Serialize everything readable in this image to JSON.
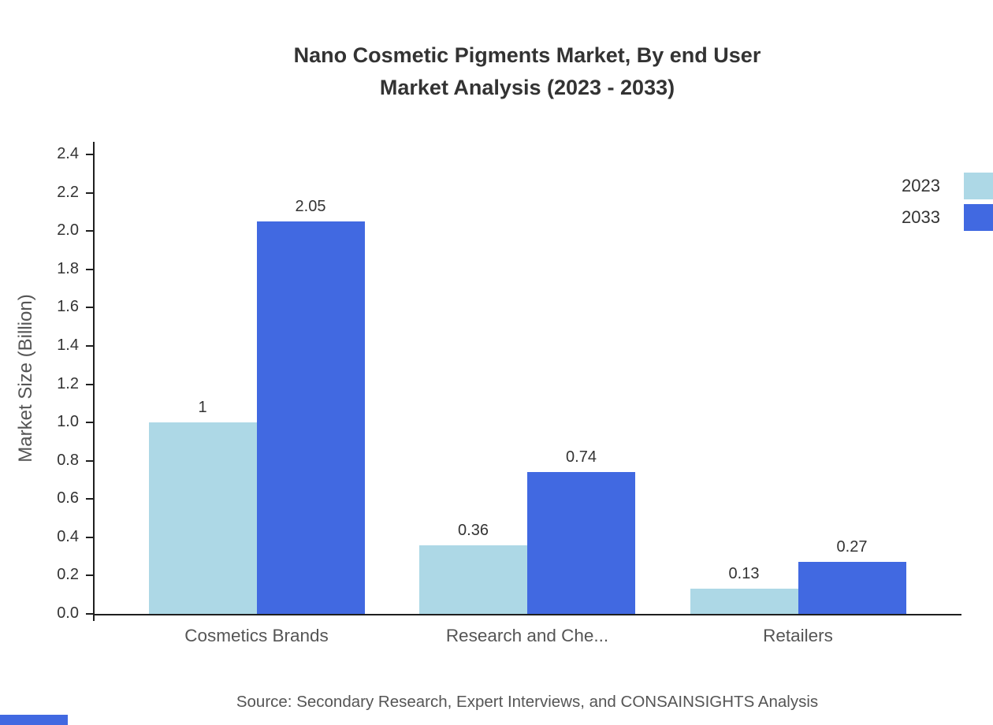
{
  "title": {
    "line1": "Nano Cosmetic Pigments Market, By end User",
    "line2": "Market Analysis (2023 - 2033)"
  },
  "source": "Source: Secondary Research, Expert Interviews, and CONSAINSIGHTS Analysis",
  "accent_color": "#4169E1",
  "chart_data": {
    "type": "bar",
    "title": "Nano Cosmetic Pigments Market, By end User Market Analysis (2023 - 2033)",
    "categories": [
      "Cosmetics Brands",
      "Research and Che...",
      "Retailers"
    ],
    "series": [
      {
        "name": "2023",
        "color": "#ADD8E6",
        "values": [
          1,
          0.36,
          0.13
        ],
        "labels": [
          "1",
          "0.36",
          "0.13"
        ]
      },
      {
        "name": "2033",
        "color": "#4169E1",
        "values": [
          2.05,
          0.74,
          0.27
        ],
        "labels": [
          "2.05",
          "0.74",
          "0.27"
        ]
      }
    ],
    "xlabel": "",
    "ylabel": "Market Size (Billion)",
    "ylim": [
      0,
      2.4
    ],
    "y_ticks": [
      0.0,
      0.2,
      0.4,
      0.6,
      0.8,
      1.0,
      1.2,
      1.4,
      1.6,
      1.8,
      2.0,
      2.2,
      2.4
    ],
    "y_tick_labels": [
      "0.0",
      "0.2",
      "0.4",
      "0.6",
      "0.8",
      "1.0",
      "1.2",
      "1.4",
      "1.6",
      "1.8",
      "2.0",
      "2.2",
      "2.4"
    ],
    "grid": false,
    "legend_position": "top-right"
  }
}
